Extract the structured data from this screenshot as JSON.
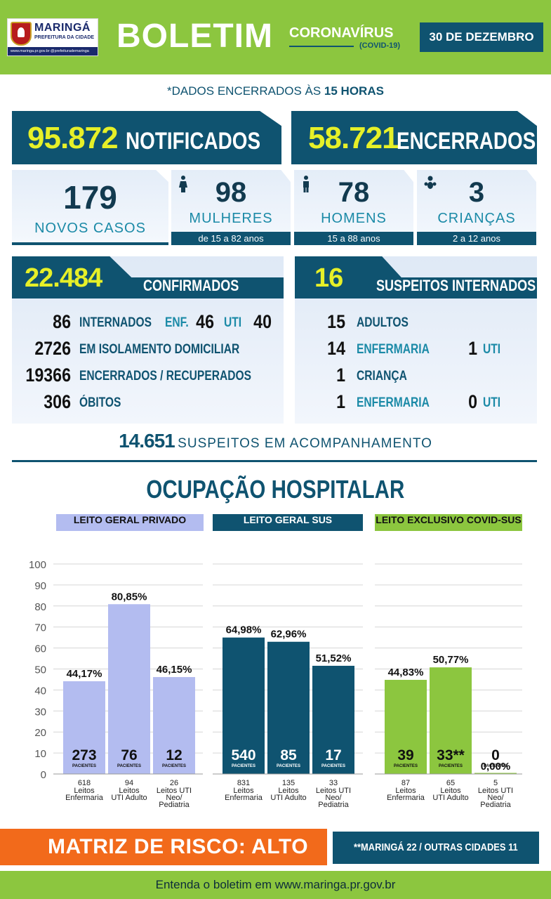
{
  "header": {
    "logo": {
      "name": "MARINGÁ",
      "subtitle": "PREFEITURA DA CIDADE",
      "strip": "www.maringa.pr.gov.br @prefeiturademaringa"
    },
    "title": "BOLETIM",
    "subtitle": "CORONAVÍRUS",
    "subtitle_tag": "(COVID-19)",
    "date": "30 DE DEZEMBRO"
  },
  "note": {
    "prefix": "*DADOS ENCERRADOS ÀS ",
    "hour": "15 HORAS"
  },
  "totals": {
    "notificados": {
      "value": "95.872",
      "label": "NOTIFICADOS"
    },
    "encerrados": {
      "value": "58.721",
      "label": "ENCERRADOS"
    }
  },
  "new_cases": {
    "total": {
      "value": "179",
      "label": "NOVOS CASOS"
    },
    "mulheres": {
      "value": "98",
      "label": "MULHERES",
      "range": "de 15 a 82 anos",
      "icon": "woman-icon"
    },
    "homens": {
      "value": "78",
      "label": "HOMENS",
      "range": "15 a 88 anos",
      "icon": "man-icon"
    },
    "criancas": {
      "value": "3",
      "label": "CRIANÇAS",
      "range": "2 a 12 anos",
      "icon": "child-icon"
    }
  },
  "confirmados": {
    "value": "22.484",
    "label": "CONFIRMADOS",
    "internados": {
      "value": "86",
      "label": "INTERNADOS",
      "enf_label": "ENF.",
      "enf_value": "46",
      "uti_label": "UTI",
      "uti_value": "40"
    },
    "isolamento": {
      "value": "2726",
      "label": "EM ISOLAMENTO DOMICILIAR"
    },
    "recuperados": {
      "value": "19366",
      "label": "ENCERRADOS / RECUPERADOS"
    },
    "obitos": {
      "value": "306",
      "label": "ÓBITOS"
    }
  },
  "suspeitos": {
    "value": "16",
    "label": "SUSPEITOS INTERNADOS",
    "adultos": {
      "value": "15",
      "label": "ADULTOS"
    },
    "adultos_enf": {
      "value": "14",
      "label": "ENFERMARIA",
      "uti_value": "1",
      "uti_label": "UTI"
    },
    "crianca": {
      "value": "1",
      "label": "CRIANÇA"
    },
    "crianca_enf": {
      "value": "1",
      "label": "ENFERMARIA",
      "uti_value": "0",
      "uti_label": "UTI"
    }
  },
  "acompanhamento": {
    "value": "14.651",
    "label": "SUSPEITOS EM ACOMPANHAMENTO"
  },
  "ocupacao": {
    "title": "OCUPAÇÃO HOSPITALAR"
  },
  "chart_data": {
    "type": "bar",
    "title": "OCUPAÇÃO HOSPITALAR",
    "ylim": [
      0,
      100
    ],
    "yticks": [
      0,
      10,
      20,
      30,
      40,
      50,
      60,
      70,
      80,
      90,
      100
    ],
    "grid": true,
    "patients_label": "PACIENTES",
    "groups": [
      {
        "name": "LEITO GERAL PRIVADO",
        "color": "#b3bcf0",
        "bars": [
          {
            "value": 44.17,
            "value_label": "44,17%",
            "patients": "273",
            "beds": "618",
            "category": "Leitos Enfermaria"
          },
          {
            "value": 80.85,
            "value_label": "80,85%",
            "patients": "76",
            "beds": "94",
            "category": "Leitos UTI Adulto"
          },
          {
            "value": 46.15,
            "value_label": "46,15%",
            "patients": "12",
            "beds": "26",
            "category": "Leitos UTI Neo/ Pediatria"
          }
        ]
      },
      {
        "name": "LEITO GERAL SUS",
        "color": "#0f5370",
        "bars": [
          {
            "value": 64.98,
            "value_label": "64,98%",
            "patients": "540",
            "beds": "831",
            "category": "Leitos Enfermaria"
          },
          {
            "value": 62.96,
            "value_label": "62,96%",
            "patients": "85",
            "beds": "135",
            "category": "Leitos UTI Adulto"
          },
          {
            "value": 51.52,
            "value_label": "51,52%",
            "patients": "17",
            "beds": "33",
            "category": "Leitos UTI Neo/ Pediatria"
          }
        ]
      },
      {
        "name": "LEITO EXCLUSIVO COVID-SUS",
        "color": "#8cc63f",
        "bars": [
          {
            "value": 44.83,
            "value_label": "44,83%",
            "patients": "39",
            "beds": "87",
            "category": "Leitos Enfermaria"
          },
          {
            "value": 50.77,
            "value_label": "50,77%",
            "patients": "33**",
            "beds": "65",
            "category": "Leitos UTI Adulto"
          },
          {
            "value": 0.0,
            "value_label": "0,00%",
            "patients": "0",
            "beds": "5",
            "category": "Leitos UTI Neo/ Pediatria"
          }
        ]
      }
    ]
  },
  "footer": {
    "risco": "MATRIZ DE RISCO: ALTO",
    "cidades": "**MARINGÁ 22 / OUTRAS CIDADES 11",
    "site": "Entenda o boletim em www.maringa.pr.gov.br"
  }
}
